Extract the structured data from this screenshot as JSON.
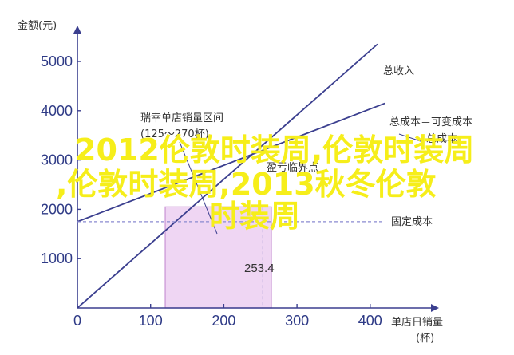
{
  "colors": {
    "axis": "#3b3f8f",
    "line": "#3b3f8f",
    "fixed_cost": "#8a8ad0",
    "region_fill": "#efd6f3",
    "region_stroke": "#c893d4",
    "guide": "#6a6ab8",
    "overlay": "#f6ee1a"
  },
  "chart_data": {
    "type": "line",
    "ylabel": "金额(元)",
    "xlabel_line1": "单店日销量",
    "xlabel_line2": "(杯)",
    "xlim": [
      0,
      450
    ],
    "ylim": [
      0,
      5800
    ],
    "x_ticks": [
      0,
      100,
      200,
      300,
      400
    ],
    "y_ticks": [
      1000,
      2000,
      3000,
      4000,
      5000
    ],
    "series": [
      {
        "name": "总收入",
        "x": [
          0,
          410
        ],
        "y": [
          0,
          5350
        ]
      },
      {
        "name": "总成本＝可变成本",
        "x": [
          0,
          420
        ],
        "y": [
          1750,
          4150
        ]
      },
      {
        "name": "固定成本",
        "x": [
          0,
          420
        ],
        "y": [
          1750,
          1750
        ]
      }
    ],
    "shaded_region": {
      "x0": 120,
      "x1": 265,
      "y_top": 2050
    },
    "value_marker": {
      "x": 253.4,
      "label": "253.4"
    },
    "annotations": [
      {
        "id": "region",
        "line1": "瑞幸单店销量区间",
        "line2": "(125～270杯)"
      },
      {
        "id": "total_cost_cut",
        "text": "总成本"
      },
      {
        "id": "breakeven",
        "text": "盈亏临界点"
      }
    ]
  },
  "overlay": {
    "line1": "2012伦敦时装周,伦敦时装周",
    "line2": ",伦敦时装周,2013秋冬伦敦",
    "line3": "时装周"
  }
}
